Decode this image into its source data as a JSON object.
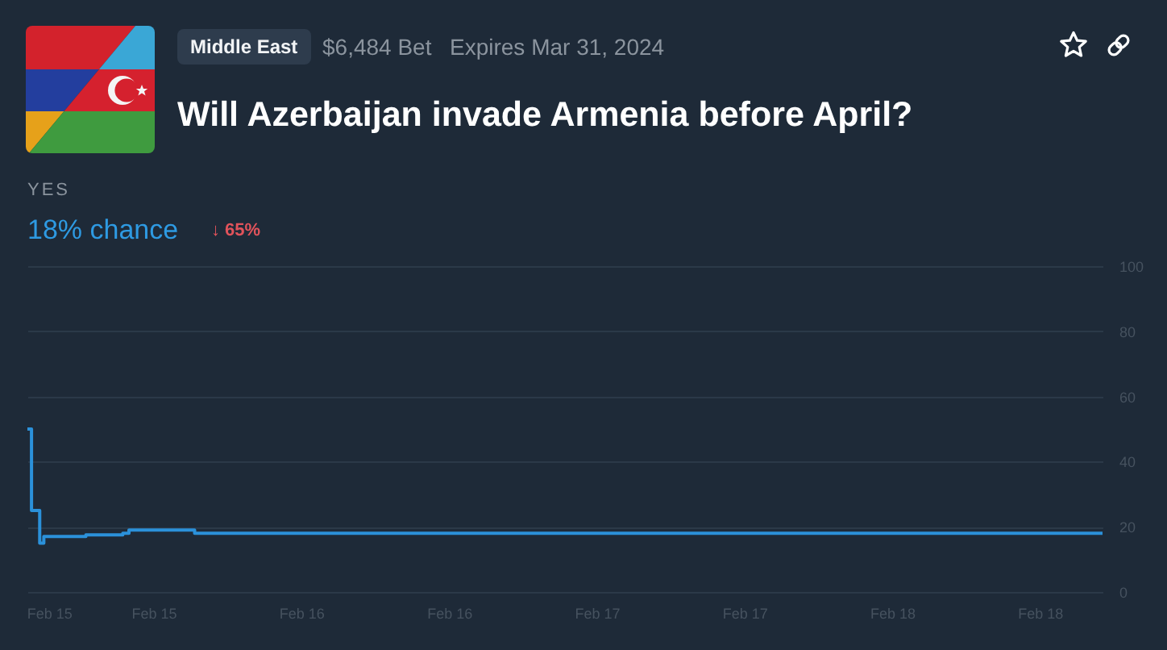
{
  "chart_data": {
    "type": "step",
    "title": "Will Azerbaijan invade Armenia before April?",
    "annotations": [
      "Middle East",
      "$6,484 Bet",
      "Expires Mar 31, 2024",
      "YES",
      "18% chance",
      "↓ 65%"
    ],
    "x": [
      "2024-02-15T01:45",
      "2024-02-15T02:05",
      "2024-02-15T02:45",
      "2024-02-15T03:05",
      "2024-02-15T06:30",
      "2024-02-15T09:30",
      "2024-02-15T10:00",
      "2024-02-15T15:20",
      "2024-02-18T17:05"
    ],
    "series": [
      {
        "color": "#2b91da",
        "values": [
          50,
          25,
          15,
          17,
          17.5,
          18,
          19,
          18,
          18
        ]
      }
    ],
    "xlim": [
      "2024-02-15T01:45",
      "2024-02-18T17:05"
    ],
    "xticks": [
      {
        "value": "2024-02-15T03:30",
        "label": "Feb 15"
      },
      {
        "value": "2024-02-15T12:00",
        "label": "Feb 15"
      },
      {
        "value": "2024-02-16T00:00",
        "label": "Feb 16"
      },
      {
        "value": "2024-02-16T12:00",
        "label": "Feb 16"
      },
      {
        "value": "2024-02-17T00:00",
        "label": "Feb 17"
      },
      {
        "value": "2024-02-17T12:00",
        "label": "Feb 17"
      },
      {
        "value": "2024-02-18T00:00",
        "label": "Feb 18"
      },
      {
        "value": "2024-02-18T12:00",
        "label": "Feb 18"
      }
    ],
    "ylim": [
      0,
      100
    ],
    "yticks": [
      0,
      20,
      40,
      60,
      80,
      100
    ],
    "grid": "y"
  }
}
